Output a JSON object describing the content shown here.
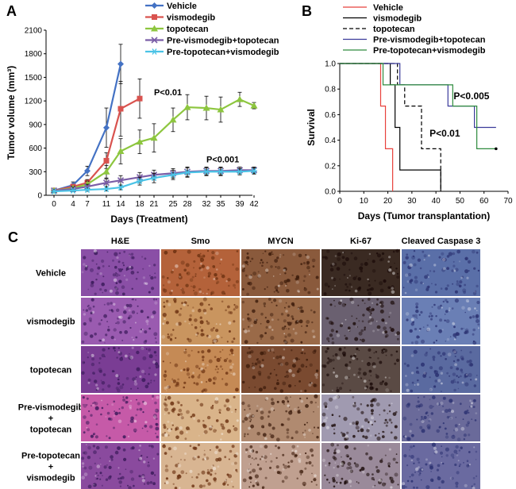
{
  "panels": {
    "a": {
      "letter": "A"
    },
    "b": {
      "letter": "B"
    },
    "c": {
      "letter": "C"
    }
  },
  "chart_data": [
    {
      "type": "line",
      "xlabel": "Days (Treatment)",
      "ylabel": "Tumor volume (mm³)",
      "xlim": [
        0,
        42
      ],
      "ylim": [
        0,
        2100
      ],
      "x_ticks": [
        0,
        4,
        7,
        11,
        14,
        18,
        21,
        25,
        28,
        32,
        35,
        39,
        42
      ],
      "y_ticks": [
        0,
        300,
        600,
        900,
        1200,
        1500,
        1800,
        2100
      ],
      "legend_position": "top-right",
      "series": [
        {
          "name": "Vehicle",
          "color": "#4472c4",
          "marker": "diamond",
          "x": [
            0,
            4,
            7,
            11,
            14
          ],
          "y": [
            60,
            130,
            310,
            860,
            1670
          ],
          "err": [
            20,
            40,
            60,
            250,
            250
          ]
        },
        {
          "name": "vismodegib",
          "color": "#d9534f",
          "marker": "square",
          "x": [
            0,
            4,
            7,
            11,
            14,
            18
          ],
          "y": [
            60,
            110,
            160,
            440,
            1100,
            1230
          ],
          "err": [
            20,
            30,
            40,
            100,
            350,
            250
          ]
        },
        {
          "name": "topotecan",
          "color": "#8dc63f",
          "marker": "triangle",
          "x": [
            0,
            4,
            7,
            11,
            14,
            18,
            21,
            25,
            28,
            32,
            35,
            39,
            42
          ],
          "y": [
            60,
            90,
            140,
            300,
            560,
            680,
            730,
            960,
            1120,
            1110,
            1090,
            1220,
            1140
          ],
          "err": [
            15,
            25,
            40,
            80,
            160,
            150,
            180,
            150,
            160,
            150,
            160,
            90,
            40
          ]
        },
        {
          "name": "Pre-vismodegib+topotecan",
          "color": "#7b5ea7",
          "marker": "x",
          "x": [
            0,
            4,
            7,
            11,
            14,
            18,
            21,
            25,
            28,
            32,
            35,
            39,
            42
          ],
          "y": [
            60,
            80,
            110,
            160,
            190,
            230,
            260,
            280,
            300,
            310,
            310,
            320,
            320
          ],
          "err": [
            15,
            20,
            30,
            50,
            60,
            60,
            60,
            60,
            60,
            50,
            50,
            40,
            40
          ]
        },
        {
          "name": "Pre-topotecan+vismodegib",
          "color": "#4bc3e6",
          "marker": "star",
          "x": [
            0,
            4,
            7,
            11,
            14,
            18,
            21,
            25,
            28,
            32,
            35,
            39,
            42
          ],
          "y": [
            50,
            60,
            70,
            80,
            100,
            180,
            220,
            260,
            290,
            300,
            300,
            300,
            310
          ],
          "err": [
            10,
            15,
            20,
            25,
            30,
            50,
            60,
            60,
            60,
            50,
            50,
            40,
            40
          ]
        }
      ],
      "annotations": [
        {
          "text": "P<0.01",
          "x": 21,
          "y": 1270
        },
        {
          "text": "P<0.001",
          "x": 32,
          "y": 420
        }
      ]
    },
    {
      "type": "line",
      "step": true,
      "xlabel": "Days (Tumor transplantation)",
      "ylabel": "Survival",
      "xlim": [
        0,
        70
      ],
      "ylim": [
        0,
        1.0
      ],
      "x_ticks": [
        0,
        10,
        20,
        30,
        40,
        50,
        60,
        70
      ],
      "y_ticks": [
        0.0,
        0.2,
        0.4,
        0.6,
        0.8,
        1.0
      ],
      "y_tick_labels": [
        "0.0",
        "0.2",
        "0.4",
        "0.6",
        "0.8",
        "1.0"
      ],
      "legend_position": "top",
      "series": [
        {
          "name": "Vehicle",
          "color": "#e8413c",
          "dash": "",
          "x": [
            0,
            17,
            17,
            19,
            19,
            22,
            22
          ],
          "y": [
            1,
            1,
            0.667,
            0.667,
            0.333,
            0.333,
            0
          ]
        },
        {
          "name": "vismodegib",
          "color": "#000000",
          "dash": "",
          "x": [
            0,
            21,
            21,
            23,
            23,
            25,
            25,
            42,
            42
          ],
          "y": [
            1,
            1,
            0.833,
            0.833,
            0.5,
            0.5,
            0.167,
            0.167,
            0
          ]
        },
        {
          "name": "topotecan",
          "color": "#000000",
          "dash": "5,3",
          "x": [
            0,
            24,
            24,
            27,
            27,
            34,
            34,
            42,
            42
          ],
          "y": [
            1,
            1,
            0.833,
            0.833,
            0.667,
            0.667,
            0.333,
            0.333,
            0
          ]
        },
        {
          "name": "Pre-vismodegib+topotecan",
          "color": "#3a3a9a",
          "dash": "",
          "x": [
            0,
            25,
            25,
            45,
            45,
            56,
            56,
            65
          ],
          "y": [
            1,
            1,
            0.833,
            0.833,
            0.667,
            0.667,
            0.5,
            0.5
          ]
        },
        {
          "name": "Pre-topotecan+vismodegib",
          "color": "#2e8b3e",
          "dash": "",
          "x": [
            0,
            18,
            18,
            26,
            26,
            47,
            47,
            57,
            57,
            65
          ],
          "y": [
            1,
            1,
            0.833,
            0.833,
            0.833,
            0.833,
            0.667,
            0.667,
            0.333,
            0.333
          ]
        }
      ],
      "censor_points": [
        {
          "x": 65,
          "y": 0.333
        }
      ],
      "annotations": [
        {
          "text": "P<0.005",
          "x": 50,
          "y": 0.72
        },
        {
          "text": "P<0.01",
          "x": 40,
          "y": 0.43
        }
      ]
    }
  ],
  "panel_c": {
    "columns": [
      "H&E",
      "Smo",
      "MYCN",
      "Ki-67",
      "Cleaved  Caspase 3"
    ],
    "rows": [
      {
        "lines": [
          "Vehicle"
        ]
      },
      {
        "lines": [
          "vismodegib"
        ]
      },
      {
        "lines": [
          "topotecan"
        ]
      },
      {
        "lines": [
          "Pre-vismodegib",
          "+",
          "topotecan"
        ]
      },
      {
        "lines": [
          "Pre-topotecan",
          "+",
          "vismodegib"
        ]
      }
    ],
    "tile_colors": {
      "H&E": [
        "#8a4fa6",
        "#9a5bb0",
        "#7a3d94",
        "#c65aa8",
        "#8a4a9e"
      ],
      "Smo": [
        "#b4623a",
        "#c9955f",
        "#c58a55",
        "#d9b48a",
        "#d8b592"
      ],
      "MYCN": [
        "#8a5a3c",
        "#9a6a48",
        "#7a4a30",
        "#b08a70",
        "#c0a090"
      ],
      "Ki-67": [
        "#3a2a22",
        "#6a6070",
        "#5a4a44",
        "#a09ab0",
        "#9a8a9a"
      ],
      "Cleaved  Caspase 3": [
        "#5a6fa8",
        "#6a7fb5",
        "#5a6aa0",
        "#6a6a9a",
        "#6a6aa0"
      ]
    },
    "dot_colors": {
      "H&E": "#3a1a5a",
      "Smo": "#6a3010",
      "MYCN": "#3a1a0a",
      "Ki-67": "#1a0a08",
      "Cleaved  Caspase 3": "#2a3070"
    }
  }
}
